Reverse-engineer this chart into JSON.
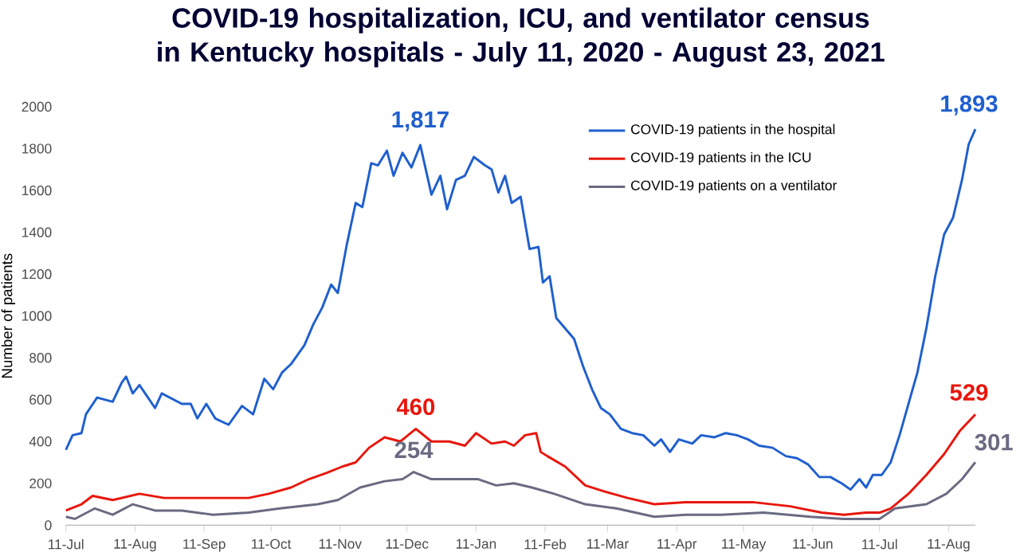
{
  "chart_data": {
    "type": "line",
    "title": "COVID-19 hospitalization, ICU, and ventilator census in Kentucky hospitals - July 11, 2020 - August 23, 2021",
    "ylabel": "Number of patients",
    "xlim": [
      "2020-07-11",
      "2021-08-23"
    ],
    "xticks": [
      {
        "value": "2020-07-11",
        "label": "11-Jul"
      },
      {
        "value": "2020-08-11",
        "label": "11-Aug"
      },
      {
        "value": "2020-09-11",
        "label": "11-Sep"
      },
      {
        "value": "2020-10-11",
        "label": "11-Oct"
      },
      {
        "value": "2020-11-11",
        "label": "11-Nov"
      },
      {
        "value": "2020-12-11",
        "label": "11-Dec"
      },
      {
        "value": "2021-01-11",
        "label": "11-Jan"
      },
      {
        "value": "2021-02-11",
        "label": "11-Feb"
      },
      {
        "value": "2021-03-11",
        "label": "11-Mar"
      },
      {
        "value": "2021-04-11",
        "label": "11-Apr"
      },
      {
        "value": "2021-05-11",
        "label": "11-May"
      },
      {
        "value": "2021-06-11",
        "label": "11-Jun"
      },
      {
        "value": "2021-07-11",
        "label": "11-Jul"
      },
      {
        "value": "2021-08-11",
        "label": "11-Aug"
      }
    ],
    "ylim": [
      0,
      2000
    ],
    "yticks": [
      0,
      200,
      400,
      600,
      800,
      1000,
      1200,
      1400,
      1600,
      1800,
      2000
    ],
    "legend": "top right",
    "marker": "none",
    "line_style": "solid",
    "series": [
      {
        "name": "COVID-19 patients in the hospital",
        "color": "#1f5fcf",
        "x": [
          "2020-07-11",
          "2020-07-14",
          "2020-07-18",
          "2020-07-20",
          "2020-07-25",
          "2020-08-01",
          "2020-08-05",
          "2020-08-07",
          "2020-08-10",
          "2020-08-13",
          "2020-08-20",
          "2020-08-23",
          "2020-09-01",
          "2020-09-05",
          "2020-09-08",
          "2020-09-12",
          "2020-09-16",
          "2020-09-22",
          "2020-09-28",
          "2020-10-03",
          "2020-10-08",
          "2020-10-12",
          "2020-10-16",
          "2020-10-20",
          "2020-10-26",
          "2020-10-30",
          "2020-11-03",
          "2020-11-07",
          "2020-11-10",
          "2020-11-14",
          "2020-11-18",
          "2020-11-21",
          "2020-11-25",
          "2020-11-28",
          "2020-12-02",
          "2020-12-05",
          "2020-12-09",
          "2020-12-13",
          "2020-12-17",
          "2020-12-22",
          "2020-12-26",
          "2020-12-29",
          "2021-01-02",
          "2021-01-06",
          "2021-01-10",
          "2021-01-15",
          "2021-01-18",
          "2021-01-21",
          "2021-01-24",
          "2021-01-27",
          "2021-01-31",
          "2021-02-04",
          "2021-02-08",
          "2021-02-10",
          "2021-02-13",
          "2021-02-16",
          "2021-02-20",
          "2021-02-24",
          "2021-02-28",
          "2021-03-04",
          "2021-03-08",
          "2021-03-12",
          "2021-03-17",
          "2021-03-22",
          "2021-03-27",
          "2021-04-01",
          "2021-04-04",
          "2021-04-08",
          "2021-04-12",
          "2021-04-18",
          "2021-04-22",
          "2021-04-28",
          "2021-05-03",
          "2021-05-08",
          "2021-05-13",
          "2021-05-18",
          "2021-05-24",
          "2021-05-30",
          "2021-06-04",
          "2021-06-09",
          "2021-06-14",
          "2021-06-19",
          "2021-06-24",
          "2021-06-28",
          "2021-07-02",
          "2021-07-05",
          "2021-07-08",
          "2021-07-12",
          "2021-07-16",
          "2021-07-20",
          "2021-07-24",
          "2021-07-28",
          "2021-08-01",
          "2021-08-05",
          "2021-08-09",
          "2021-08-13",
          "2021-08-17",
          "2021-08-20",
          "2021-08-23"
        ],
        "values": [
          360,
          430,
          440,
          530,
          610,
          590,
          680,
          710,
          630,
          670,
          560,
          630,
          580,
          580,
          510,
          580,
          510,
          480,
          570,
          530,
          700,
          650,
          730,
          770,
          860,
          960,
          1040,
          1150,
          1110,
          1340,
          1540,
          1520,
          1730,
          1720,
          1790,
          1670,
          1780,
          1710,
          1817,
          1580,
          1670,
          1510,
          1650,
          1670,
          1760,
          1720,
          1700,
          1590,
          1670,
          1540,
          1570,
          1320,
          1330,
          1160,
          1190,
          990,
          940,
          890,
          760,
          650,
          560,
          530,
          460,
          440,
          430,
          380,
          410,
          350,
          410,
          390,
          430,
          420,
          440,
          430,
          410,
          380,
          370,
          330,
          320,
          290,
          230,
          230,
          200,
          170,
          220,
          180,
          240,
          240,
          300,
          430,
          580,
          730,
          940,
          1190,
          1390,
          1470,
          1650,
          1820,
          1893
        ]
      },
      {
        "name": "COVID-19 patients in the ICU",
        "color": "#e8160c",
        "x": [
          "2020-07-11",
          "2020-07-18",
          "2020-07-23",
          "2020-08-01",
          "2020-08-13",
          "2020-08-24",
          "2020-09-10",
          "2020-09-20",
          "2020-10-01",
          "2020-10-10",
          "2020-10-20",
          "2020-10-28",
          "2020-11-05",
          "2020-11-12",
          "2020-11-18",
          "2020-11-24",
          "2020-12-01",
          "2020-12-08",
          "2020-12-15",
          "2020-12-22",
          "2020-12-30",
          "2021-01-06",
          "2021-01-11",
          "2021-01-18",
          "2021-01-24",
          "2021-01-28",
          "2021-02-02",
          "2021-02-07",
          "2021-02-09",
          "2021-02-12",
          "2021-02-20",
          "2021-03-01",
          "2021-03-10",
          "2021-03-20",
          "2021-04-01",
          "2021-04-15",
          "2021-05-01",
          "2021-05-15",
          "2021-06-01",
          "2021-06-15",
          "2021-06-25",
          "2021-07-05",
          "2021-07-11",
          "2021-07-16",
          "2021-07-24",
          "2021-08-01",
          "2021-08-09",
          "2021-08-16",
          "2021-08-23"
        ],
        "values": [
          70,
          100,
          140,
          120,
          150,
          130,
          130,
          130,
          130,
          150,
          180,
          220,
          250,
          280,
          300,
          370,
          420,
          400,
          460,
          400,
          400,
          380,
          440,
          390,
          400,
          380,
          430,
          440,
          350,
          330,
          280,
          190,
          160,
          130,
          100,
          110,
          110,
          110,
          90,
          60,
          50,
          60,
          60,
          80,
          150,
          240,
          340,
          450,
          529
        ]
      },
      {
        "name": "COVID-19 patients on a ventilator",
        "color": "#6a6a82",
        "x": [
          "2020-07-11",
          "2020-07-15",
          "2020-07-24",
          "2020-08-01",
          "2020-08-10",
          "2020-08-20",
          "2020-09-01",
          "2020-09-15",
          "2020-10-01",
          "2020-10-15",
          "2020-11-01",
          "2020-11-10",
          "2020-11-20",
          "2020-12-01",
          "2020-12-09",
          "2020-12-14",
          "2020-12-22",
          "2021-01-05",
          "2021-01-12",
          "2021-01-20",
          "2021-01-28",
          "2021-02-05",
          "2021-02-15",
          "2021-03-01",
          "2021-03-15",
          "2021-04-01",
          "2021-04-15",
          "2021-05-01",
          "2021-05-20",
          "2021-06-10",
          "2021-06-25",
          "2021-07-11",
          "2021-07-18",
          "2021-08-01",
          "2021-08-10",
          "2021-08-17",
          "2021-08-23"
        ],
        "values": [
          40,
          30,
          80,
          50,
          100,
          70,
          70,
          50,
          60,
          80,
          100,
          120,
          180,
          210,
          220,
          254,
          220,
          220,
          220,
          190,
          200,
          180,
          150,
          100,
          80,
          40,
          50,
          50,
          60,
          40,
          30,
          30,
          80,
          100,
          150,
          220,
          301
        ]
      }
    ],
    "annotations": [
      {
        "text": "1,817",
        "x": "2020-12-17",
        "y": 1817
      },
      {
        "text": "460",
        "x": "2020-12-15",
        "y": 460
      },
      {
        "text": "254",
        "x": "2020-12-14",
        "y": 254
      },
      {
        "text": "1,893",
        "x": "2021-08-23",
        "y": 1893
      },
      {
        "text": "529",
        "x": "2021-08-23",
        "y": 529
      },
      {
        "text": "301",
        "x": "2021-08-23",
        "y": 301
      }
    ]
  }
}
